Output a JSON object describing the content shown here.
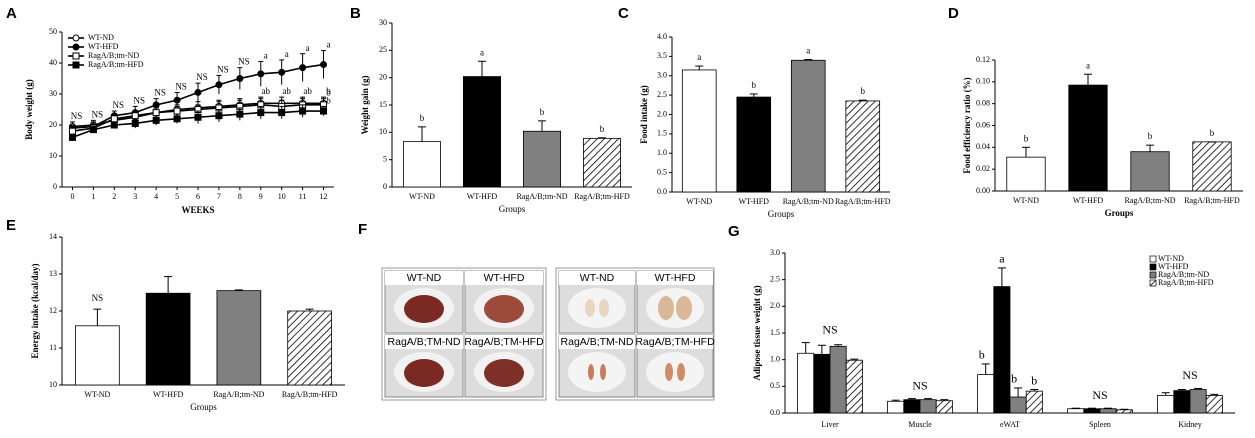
{
  "chart_data": [
    {
      "panel": "A",
      "type": "line",
      "ylabel": "Body weight (g)",
      "xlabel": "WEEKS",
      "x": [
        0,
        1,
        2,
        3,
        4,
        5,
        6,
        7,
        8,
        9,
        10,
        11,
        12
      ],
      "xlim": [
        -0.5,
        12.5
      ],
      "xticks": [
        0,
        1,
        2,
        3,
        4,
        5,
        6,
        7,
        8,
        9,
        10,
        11,
        12
      ],
      "ylim": [
        0,
        50
      ],
      "yticks": [
        0,
        10,
        20,
        30,
        40,
        50
      ],
      "legend": "upper left",
      "series": [
        {
          "name": "WT-ND",
          "color": "#000000",
          "marker": "circle",
          "filled": false,
          "values": [
            19.5,
            20,
            21.5,
            22.5,
            24,
            25,
            25.5,
            26,
            26.5,
            27,
            27,
            27,
            27
          ],
          "errors": [
            1.5,
            1.5,
            1.5,
            1.5,
            1.5,
            1.5,
            2,
            2,
            2,
            2,
            2,
            2,
            2
          ]
        },
        {
          "name": "WT-HFD",
          "color": "#000000",
          "marker": "circle",
          "filled": true,
          "values": [
            19,
            19.5,
            23,
            24,
            26.5,
            28,
            30.5,
            33,
            35,
            36.5,
            37,
            38.5,
            39.5
          ],
          "errors": [
            1,
            1.5,
            1.5,
            2,
            2,
            2.5,
            3,
            3,
            3.5,
            4,
            4,
            4.5,
            4.5
          ]
        },
        {
          "name": "RagA/B;tm-ND",
          "color": "#000000",
          "marker": "square",
          "filled": false,
          "values": [
            18,
            19,
            22,
            23,
            24,
            24.5,
            25,
            25.5,
            26,
            26.5,
            26,
            26.5,
            26.5
          ],
          "errors": [
            1,
            1,
            1.5,
            1.5,
            1.5,
            1.5,
            1.5,
            2,
            2,
            2,
            2,
            2,
            2
          ]
        },
        {
          "name": "RagA/B;tm-HFD",
          "color": "#000000",
          "marker": "square",
          "filled": true,
          "values": [
            16,
            18.5,
            20,
            20.5,
            21.5,
            22,
            22.5,
            23,
            23.5,
            24,
            24,
            24.5,
            24.5
          ],
          "errors": [
            1,
            1,
            1,
            1.5,
            1.5,
            1.5,
            2,
            2,
            2,
            2,
            2,
            2,
            1.5
          ]
        }
      ],
      "annotations": [
        {
          "x": 0,
          "text": "NS"
        },
        {
          "x": 1,
          "text": "NS"
        },
        {
          "x": 2,
          "text": "NS"
        },
        {
          "x": 3,
          "text": "NS"
        },
        {
          "x": 4,
          "text": "NS"
        },
        {
          "x": 5,
          "text": "NS"
        },
        {
          "x": 6,
          "text": "NS"
        },
        {
          "x": 7,
          "text": "NS"
        },
        {
          "x": 8,
          "text": "NS"
        },
        {
          "x": 9,
          "series": 1,
          "text": "a"
        },
        {
          "x": 10,
          "series": 1,
          "text": "a"
        },
        {
          "x": 11,
          "series": 1,
          "text": "a"
        },
        {
          "x": 12,
          "series": 1,
          "text": "a"
        },
        {
          "x": 9,
          "series": 0,
          "text": "ab"
        },
        {
          "x": 10,
          "series": 0,
          "text": "ab"
        },
        {
          "x": 11,
          "series": 0,
          "text": "ab"
        },
        {
          "x": 12,
          "series": 0,
          "text": "b"
        },
        {
          "x": 12,
          "series": 2,
          "text": "b"
        },
        {
          "x": 12,
          "series": 3,
          "text": "b"
        }
      ]
    },
    {
      "panel": "B",
      "type": "bar",
      "ylabel": "Weight gain (g)",
      "xlabel": "Groups",
      "categories": [
        "WT-ND",
        "WT-HFD",
        "RagA/B;tm-ND",
        "RagA/B;tm-HFD"
      ],
      "values": [
        8.3,
        20.2,
        10.2,
        8.9
      ],
      "errors": [
        2.7,
        2.8,
        1.9,
        0.1
      ],
      "letters": [
        "b",
        "a",
        "b",
        "b"
      ],
      "colors": [
        "#ffffff",
        "#000000",
        "#808080",
        "#ffffff"
      ],
      "hatched": [
        false,
        false,
        false,
        true
      ],
      "ylim": [
        0,
        30
      ],
      "yticks": [
        0,
        5,
        10,
        15,
        20,
        25,
        30
      ]
    },
    {
      "panel": "C",
      "type": "bar",
      "ylabel": "Food intake (g)",
      "xlabel": "Groups",
      "categories": [
        "WT-ND",
        "WT-HFD",
        "RagA/B;tm-ND",
        "RagA/B;tm-HFD"
      ],
      "values": [
        3.15,
        2.45,
        3.4,
        2.35
      ],
      "errors": [
        0.1,
        0.08,
        0.02,
        0.02
      ],
      "letters": [
        "a",
        "b",
        "a",
        "b"
      ],
      "colors": [
        "#ffffff",
        "#000000",
        "#808080",
        "#ffffff"
      ],
      "hatched": [
        false,
        false,
        false,
        true
      ],
      "ylim": [
        0,
        4
      ],
      "yticks": [
        {
          "value": 0,
          "label": "0.0"
        },
        0.5,
        {
          "value": 1,
          "label": "1.0"
        },
        1.5,
        {
          "value": 2,
          "label": "2.0"
        },
        2.5,
        {
          "value": 3,
          "label": "3.0"
        },
        3.5,
        {
          "value": 4,
          "label": "4.0"
        }
      ]
    },
    {
      "panel": "D",
      "type": "bar",
      "ylabel": "Food efficiency ratio (%)",
      "xlabel": "Groups",
      "categories": [
        "WT-ND",
        "WT-HFD",
        "RagA/B;tm-ND",
        "RagA/B;tm-HFD"
      ],
      "values": [
        0.031,
        0.097,
        0.036,
        0.045
      ],
      "errors": [
        0.009,
        0.01,
        0.006,
        0
      ],
      "letters": [
        "b",
        "a",
        "b",
        "b"
      ],
      "colors": [
        "#ffffff",
        "#000000",
        "#808080",
        "#ffffff"
      ],
      "hatched": [
        false,
        false,
        false,
        true
      ],
      "ylim": [
        0,
        0.12
      ],
      "yticks": [
        {
          "value": 0,
          "label": "0.00"
        },
        0.02,
        0.04,
        0.06,
        0.08,
        {
          "value": 0.1,
          "label": "0.10"
        },
        0.12
      ]
    },
    {
      "panel": "E",
      "type": "bar",
      "ylabel": "Energy intake (kcal/day)",
      "xlabel": "Groups",
      "categories": [
        "WT-ND",
        "WT-HFD",
        "RagA/B;tm-ND",
        "RagA/B;tm-HFD"
      ],
      "values": [
        11.6,
        12.48,
        12.55,
        12.0
      ],
      "errors": [
        0.45,
        0.45,
        0.02,
        0.05
      ],
      "annotations": [
        {
          "category": 0,
          "text": "NS"
        }
      ],
      "colors": [
        "#ffffff",
        "#000000",
        "#808080",
        "#ffffff"
      ],
      "hatched": [
        false,
        false,
        false,
        true
      ],
      "ylim": [
        10,
        14
      ],
      "yticks": [
        10,
        11,
        12,
        13,
        14
      ]
    },
    {
      "panel": "G",
      "type": "bar",
      "ylabel": "Adipose tissue weight (g)",
      "legend": "upper right",
      "categories": [
        "Liver",
        "Muscle",
        "eWAT",
        "Spleen",
        "Kidney"
      ],
      "ylim": [
        0,
        3
      ],
      "yticks": [
        {
          "value": 0,
          "label": "0.0"
        },
        0.5,
        {
          "value": 1,
          "label": "1.0"
        },
        1.5,
        {
          "value": 2,
          "label": "2.0"
        },
        2.5,
        {
          "value": 3,
          "label": "3.0"
        }
      ],
      "series": [
        {
          "name": "WT-ND",
          "color": "#ffffff",
          "hatched": false,
          "values": [
            1.12,
            0.22,
            0.72,
            0.08,
            0.33
          ],
          "errors": [
            0.2,
            0.02,
            0.2,
            0.01,
            0.05
          ],
          "letters": [
            null,
            null,
            "b",
            null,
            null
          ]
        },
        {
          "name": "WT-HFD",
          "color": "#000000",
          "hatched": false,
          "values": [
            1.1,
            0.25,
            2.37,
            0.08,
            0.42
          ],
          "errors": [
            0.17,
            0.02,
            0.35,
            0.01,
            0.02
          ],
          "letters": [
            null,
            null,
            "a",
            null,
            null
          ]
        },
        {
          "name": "RagA/B;tm-ND",
          "color": "#808080",
          "hatched": false,
          "values": [
            1.25,
            0.25,
            0.3,
            0.08,
            0.44
          ],
          "errors": [
            0.03,
            0.02,
            0.17,
            0.01,
            0.02
          ],
          "letters": [
            null,
            null,
            "b",
            null,
            null
          ]
        },
        {
          "name": "RagA/B;tm-HFD",
          "color": "#ffffff",
          "hatched": true,
          "values": [
            0.99,
            0.23,
            0.41,
            0.06,
            0.33
          ],
          "errors": [
            0.02,
            0.02,
            0.03,
            0.01,
            0.02
          ],
          "letters": [
            null,
            null,
            "b",
            null,
            null
          ]
        }
      ],
      "annotations": [
        {
          "category": 0,
          "text": "NS"
        },
        {
          "category": 1,
          "text": "NS"
        },
        {
          "category": 3,
          "text": "NS"
        },
        {
          "category": 4,
          "text": "NS"
        }
      ]
    }
  ],
  "photo_panels": [
    {
      "panel": "F",
      "groups": [
        {
          "tiles": [
            "WT-ND",
            "WT-HFD",
            "RagA/B;TM-ND",
            "RagA/B;TM-HFD"
          ]
        },
        {
          "tiles": [
            "WT-ND",
            "WT-HFD",
            "RagA/B;TM-ND",
            "RagA/B;TM-HFD"
          ]
        }
      ]
    }
  ]
}
